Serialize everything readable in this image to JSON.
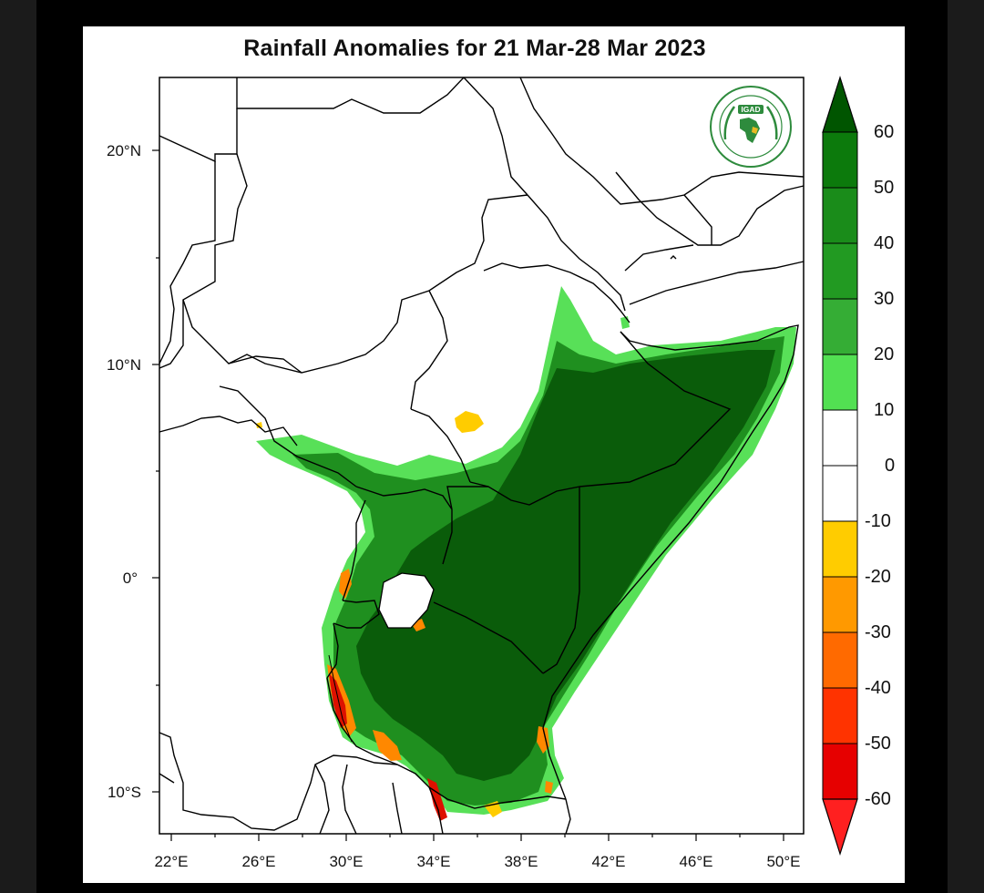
{
  "title": "Rainfall Anomalies for 21 Mar-28 Mar 2023",
  "logo": {
    "text": "IGAD",
    "ring_text": "INTERGOVERNMENTAL AUTHORITY ON DEVELOPMENT"
  },
  "axes": {
    "lat_labels": [
      "20°N",
      "10°N",
      "0°",
      "10°S"
    ],
    "lon_labels": [
      "22°E",
      "26°E",
      "30°E",
      "34°E",
      "38°E",
      "42°E",
      "46°E",
      "50°E"
    ]
  },
  "colorbar": {
    "labels": [
      "60",
      "50",
      "40",
      "30",
      "20",
      "10",
      "0",
      "-10",
      "-20",
      "-30",
      "-40",
      "-50",
      "-60"
    ],
    "colors": [
      "#005500",
      "#0c7a0c",
      "#1a8c1a",
      "#2a9e2a",
      "#3ab33a",
      "#52e052",
      "#ffffff",
      "#ffffff",
      "#ffcc00",
      "#ff9900",
      "#ff6a00",
      "#ff3300",
      "#e60000",
      "#ff2020"
    ]
  },
  "map_colors": {
    "dark_green": "#0a5c0a",
    "mid_green": "#1f8f1f",
    "light_green": "#58e058",
    "yellow": "#ffcc00",
    "orange": "#ff8800",
    "red": "#dd1100"
  }
}
